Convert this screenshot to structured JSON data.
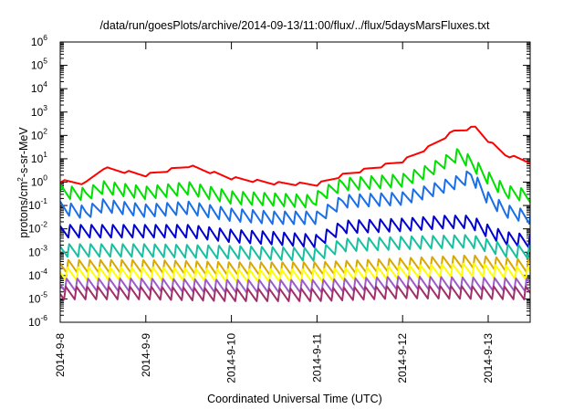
{
  "chart_data": {
    "type": "line",
    "title": "/data/run/goesPlots/archive/2014-09-13/11:00/flux/../flux/5daysMarsFluxes.txt",
    "xlabel": "Coordinated Universal Time (UTC)",
    "ylabel_base": "protons/cm",
    "ylabel_sup": "2",
    "ylabel_rest": "-s-sr-MeV",
    "x_ticks": [
      "2014-9-8",
      "2014-9-9",
      "2014-9-10",
      "2014-9-11",
      "2014-9-12",
      "2014-9-13"
    ],
    "xlim_days": [
      0,
      5.5
    ],
    "yscale": "log",
    "ylim": [
      1e-06,
      1000000.0
    ],
    "y_tick_base": "10",
    "y_tick_exponents": [
      "-6",
      "-5",
      "-4",
      "-3",
      "-2",
      "-1",
      "0",
      "1",
      "2",
      "3",
      "4",
      "5",
      "6"
    ],
    "grid": false,
    "legend": "none",
    "series": [
      {
        "color": "#ff0000",
        "sawtooth": false,
        "anchors": [
          [
            0,
            1.1
          ],
          [
            0.3,
            0.9
          ],
          [
            0.5,
            4.0
          ],
          [
            1.0,
            2.0
          ],
          [
            1.5,
            5.0
          ],
          [
            2.0,
            1.5
          ],
          [
            2.5,
            0.9
          ],
          [
            3.0,
            0.8
          ],
          [
            3.3,
            2.0
          ],
          [
            4.0,
            8.0
          ],
          [
            4.3,
            30
          ],
          [
            4.6,
            150
          ],
          [
            4.85,
            220
          ],
          [
            5.0,
            60
          ],
          [
            5.2,
            15
          ],
          [
            5.5,
            7
          ]
        ]
      },
      {
        "color": "#00e000",
        "sawtooth": true,
        "anchors": [
          [
            0,
            0.4
          ],
          [
            0.3,
            0.3
          ],
          [
            0.5,
            0.6
          ],
          [
            1.0,
            0.35
          ],
          [
            1.5,
            0.55
          ],
          [
            2.0,
            0.22
          ],
          [
            2.5,
            0.18
          ],
          [
            2.95,
            0.15
          ],
          [
            3.05,
            0.3
          ],
          [
            3.3,
            0.8
          ],
          [
            4.0,
            1.2
          ],
          [
            4.3,
            3
          ],
          [
            4.65,
            15
          ],
          [
            4.8,
            7
          ],
          [
            5.0,
            1.5
          ],
          [
            5.2,
            0.4
          ],
          [
            5.5,
            0.25
          ]
        ]
      },
      {
        "color": "#1a6ee6",
        "sawtooth": true,
        "anchors": [
          [
            0,
            0.08
          ],
          [
            0.3,
            0.05
          ],
          [
            0.5,
            0.1
          ],
          [
            1.0,
            0.06
          ],
          [
            1.5,
            0.08
          ],
          [
            2.0,
            0.04
          ],
          [
            2.5,
            0.03
          ],
          [
            3.0,
            0.03
          ],
          [
            3.3,
            0.15
          ],
          [
            4.0,
            0.2
          ],
          [
            4.3,
            0.4
          ],
          [
            4.7,
            1.2
          ],
          [
            4.8,
            2.0
          ],
          [
            5.0,
            0.2
          ],
          [
            5.2,
            0.06
          ],
          [
            5.5,
            0.03
          ]
        ]
      },
      {
        "color": "#0000d0",
        "sawtooth": true,
        "anchors": [
          [
            0,
            0.008
          ],
          [
            0.5,
            0.008
          ],
          [
            1.0,
            0.008
          ],
          [
            1.5,
            0.008
          ],
          [
            2.0,
            0.005
          ],
          [
            2.5,
            0.004
          ],
          [
            3.0,
            0.003
          ],
          [
            3.3,
            0.012
          ],
          [
            4.0,
            0.015
          ],
          [
            4.5,
            0.02
          ],
          [
            4.8,
            0.02
          ],
          [
            5.0,
            0.008
          ],
          [
            5.2,
            0.004
          ],
          [
            5.5,
            0.003
          ]
        ]
      },
      {
        "color": "#18c0a0",
        "sawtooth": true,
        "anchors": [
          [
            0,
            0.0012
          ],
          [
            1.0,
            0.0012
          ],
          [
            2.0,
            0.001
          ],
          [
            3.0,
            0.0008
          ],
          [
            3.3,
            0.002
          ],
          [
            4.0,
            0.0025
          ],
          [
            4.8,
            0.003
          ],
          [
            5.2,
            0.0012
          ],
          [
            5.5,
            0.001
          ]
        ]
      },
      {
        "color": "#d8a800",
        "sawtooth": true,
        "anchors": [
          [
            0,
            0.00025
          ],
          [
            1.0,
            0.00025
          ],
          [
            2.0,
            0.0002
          ],
          [
            3.0,
            0.0002
          ],
          [
            4.0,
            0.0003
          ],
          [
            4.8,
            0.0004
          ],
          [
            5.5,
            0.00025
          ]
        ]
      },
      {
        "color": "#ffff00",
        "sawtooth": true,
        "anchors": [
          [
            0,
            0.00012
          ],
          [
            1.0,
            0.00012
          ],
          [
            2.0,
            0.0001
          ],
          [
            3.0,
            0.0001
          ],
          [
            4.0,
            0.00014
          ],
          [
            4.8,
            0.00018
          ],
          [
            5.5,
            0.00012
          ]
        ]
      },
      {
        "color": "#9c5cc8",
        "sawtooth": true,
        "anchors": [
          [
            0,
            4e-05
          ],
          [
            1.0,
            4e-05
          ],
          [
            2.0,
            3.5e-05
          ],
          [
            3.0,
            3.5e-05
          ],
          [
            4.0,
            5e-05
          ],
          [
            5.5,
            4e-05
          ]
        ]
      },
      {
        "color": "#a0306a",
        "sawtooth": true,
        "anchors": [
          [
            0,
            1.8e-05
          ],
          [
            1.0,
            1.8e-05
          ],
          [
            2.0,
            1.5e-05
          ],
          [
            3.0,
            1.5e-05
          ],
          [
            4.0,
            2e-05
          ],
          [
            5.5,
            1.8e-05
          ]
        ]
      }
    ]
  }
}
